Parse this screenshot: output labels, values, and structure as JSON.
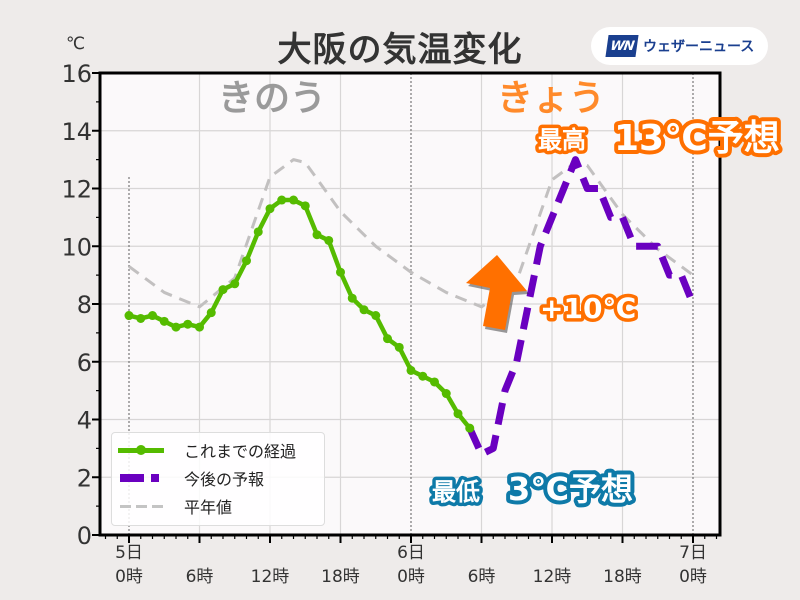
{
  "header": {
    "title": "大阪の気温変化",
    "logo_mark": "WN",
    "logo_text": "ウェザーニュース"
  },
  "axes": {
    "y_unit": "℃",
    "y_ticks": [
      "0",
      "2",
      "4",
      "6",
      "8",
      "10",
      "12",
      "14",
      "16"
    ],
    "x_ticks": [
      {
        "line1": "5日",
        "line2": "0時"
      },
      {
        "line1": "",
        "line2": "6時"
      },
      {
        "line1": "",
        "line2": "12時"
      },
      {
        "line1": "",
        "line2": "18時"
      },
      {
        "line1": "6日",
        "line2": "0時"
      },
      {
        "line1": "",
        "line2": "6時"
      },
      {
        "line1": "",
        "line2": "12時"
      },
      {
        "line1": "",
        "line2": "18時"
      },
      {
        "line1": "7日",
        "line2": "0時"
      }
    ]
  },
  "annotations": {
    "yesterday": "きのう",
    "today": "きょう",
    "high_prefix": "最高",
    "high_value": "13℃予想",
    "low_prefix": "最低",
    "low_value": "3℃予想",
    "delta": "+10℃"
  },
  "legend": {
    "observed": "これまでの経過",
    "forecast": "今後の予報",
    "normal": "平年値"
  },
  "colors": {
    "observed": "#55bb00",
    "forecast": "#6a00c0",
    "normal": "#bbbbbb",
    "today_orange": "#ff7a1a",
    "yesterday_gray": "#999999",
    "low_blue": "#0e7aa8"
  },
  "chart_data": {
    "type": "line",
    "title": "大阪の気温変化",
    "xlabel": "",
    "ylabel": "℃",
    "ylim": [
      0,
      16
    ],
    "x_range_hours": [
      -2,
      50
    ],
    "grid": true,
    "legend_position": "lower left",
    "series": [
      {
        "name": "これまでの経過",
        "style": "solid-with-markers",
        "x_hours": [
          0,
          1,
          2,
          3,
          4,
          5,
          6,
          7,
          8,
          9,
          10,
          11,
          12,
          13,
          14,
          15,
          16,
          17,
          18,
          19,
          20,
          21,
          22,
          23,
          24,
          25,
          26,
          27,
          28,
          29
        ],
        "values": [
          7.6,
          7.5,
          7.6,
          7.4,
          7.2,
          7.3,
          7.2,
          7.7,
          8.5,
          8.7,
          9.5,
          10.5,
          11.3,
          11.6,
          11.6,
          11.4,
          10.4,
          10.2,
          9.1,
          8.2,
          7.8,
          7.6,
          6.8,
          6.5,
          5.7,
          5.5,
          5.3,
          4.9,
          4.2,
          3.7
        ]
      },
      {
        "name": "今後の予報",
        "style": "dashed",
        "x_hours": [
          29,
          30,
          31,
          32,
          33,
          34,
          35,
          36,
          37,
          38,
          39,
          40,
          41,
          42,
          43,
          44,
          45,
          46,
          47,
          48
        ],
        "values": [
          3.7,
          2.8,
          3.0,
          5.0,
          6.0,
          8.0,
          10.0,
          11.0,
          12.0,
          13.0,
          12.0,
          12.0,
          11.0,
          11.0,
          10.0,
          10.0,
          10.0,
          9.0,
          9.0,
          8.0
        ]
      },
      {
        "name": "平年値",
        "style": "dashed-light",
        "x_hours": [
          0,
          3,
          6,
          9,
          12,
          14,
          15,
          18,
          21,
          24,
          27,
          30,
          33,
          36,
          38,
          39,
          42,
          45,
          48
        ],
        "values": [
          9.3,
          8.4,
          7.9,
          8.9,
          12.4,
          13.0,
          12.9,
          11.2,
          10.0,
          9.1,
          8.4,
          7.9,
          8.8,
          12.3,
          12.9,
          12.8,
          11.1,
          9.9,
          9.0
        ]
      }
    ],
    "annotations": [
      "きのう",
      "きょう",
      "最高 13℃予想",
      "最低 3℃予想",
      "+10℃"
    ]
  }
}
